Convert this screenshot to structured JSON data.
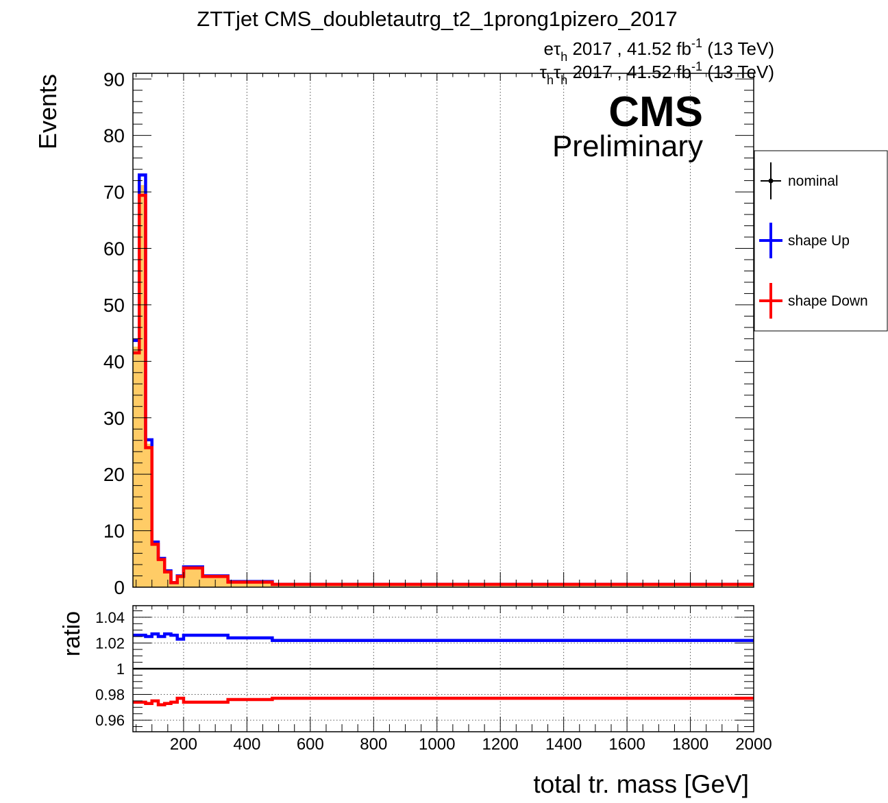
{
  "title": "ZTTjet CMS_doubletautrg_t2_1prong1pizero_2017",
  "lumi_lines": [
    {
      "prefix": "e",
      "tau_sub": "h",
      "suffix": " 2017 , 41.52 fb",
      "sup": "-1",
      "tail": " (13 TeV)"
    },
    {
      "prefix": "",
      "tau_sub": "h",
      "second_tau_sub": "h",
      "suffix": " 2017 , 41.52 fb",
      "sup": "-1",
      "tail": " (13 TeV)"
    }
  ],
  "cms_label": "CMS",
  "cms_sub": "Preliminary",
  "legend": [
    {
      "label": "nominal",
      "color": "#000000",
      "marker": "dot"
    },
    {
      "label": "shape Up",
      "color": "#0000ff",
      "marker": "cross"
    },
    {
      "label": "shape Down",
      "color": "#ff0000",
      "marker": "cross"
    }
  ],
  "chart_data": [
    {
      "type": "step",
      "ylabel": "Events",
      "xlim": [
        40,
        2000
      ],
      "ylim": [
        0,
        91
      ],
      "yticks": [
        0,
        10,
        20,
        30,
        40,
        50,
        60,
        70,
        80,
        90
      ],
      "xgrid": [
        200,
        400,
        600,
        800,
        1000,
        1200,
        1400,
        1600,
        1800
      ],
      "bin_edges": [
        40,
        60,
        80,
        100,
        120,
        140,
        160,
        180,
        200,
        220,
        240,
        260,
        280,
        300,
        320,
        340,
        360,
        380,
        400,
        420,
        440,
        460,
        480,
        500,
        2000
      ],
      "series": [
        {
          "name": "nominal",
          "color": "#ffcc66",
          "fill": true,
          "values": [
            42.6,
            71.2,
            25.4,
            7.8,
            5.0,
            2.8,
            0.8,
            2.0,
            3.5,
            3.5,
            3.5,
            1.9,
            1.9,
            1.9,
            1.9,
            1.0,
            1.0,
            1.0,
            1.0,
            1.0,
            1.0,
            1.0,
            0.5,
            0.5
          ]
        },
        {
          "name": "shape Up",
          "color": "#0000ff",
          "values": [
            43.7,
            73.0,
            26.1,
            8.0,
            5.1,
            2.9,
            0.8,
            2.0,
            3.6,
            3.6,
            3.6,
            2.0,
            2.0,
            2.0,
            2.0,
            1.0,
            1.0,
            1.0,
            1.0,
            1.0,
            1.0,
            1.0,
            0.5,
            0.5
          ]
        },
        {
          "name": "shape Down",
          "color": "#ff0000",
          "values": [
            41.5,
            69.4,
            24.7,
            7.6,
            4.9,
            2.7,
            0.8,
            1.9,
            3.4,
            3.4,
            3.4,
            1.9,
            1.9,
            1.9,
            1.9,
            0.9,
            0.9,
            0.9,
            0.9,
            0.9,
            0.9,
            0.9,
            0.5,
            0.5
          ]
        }
      ]
    },
    {
      "type": "step",
      "xlabel": "total tr. mass [GeV]",
      "ylabel": "ratio",
      "xlim": [
        40,
        2000
      ],
      "ylim": [
        0.951,
        1.049
      ],
      "yticks": [
        0.96,
        0.98,
        1,
        1.02,
        1.04
      ],
      "ytick_labels": [
        "0.96",
        "0.98",
        "1",
        "1.02",
        "1.04"
      ],
      "xticks": [
        200,
        400,
        600,
        800,
        1000,
        1200,
        1400,
        1600,
        1800,
        2000
      ],
      "reference_line": 1,
      "bin_edges": [
        40,
        60,
        80,
        100,
        120,
        140,
        160,
        180,
        200,
        220,
        240,
        260,
        280,
        300,
        320,
        340,
        360,
        380,
        400,
        420,
        440,
        460,
        480,
        500,
        2000
      ],
      "series": [
        {
          "name": "shape Up",
          "color": "#0000ff",
          "values": [
            1.026,
            1.026,
            1.025,
            1.027,
            1.025,
            1.027,
            1.026,
            1.023,
            1.026,
            1.026,
            1.026,
            1.026,
            1.026,
            1.026,
            1.026,
            1.024,
            1.024,
            1.024,
            1.024,
            1.024,
            1.024,
            1.024,
            1.022,
            1.022
          ]
        },
        {
          "name": "shape Down",
          "color": "#ff0000",
          "values": [
            0.974,
            0.974,
            0.973,
            0.975,
            0.972,
            0.973,
            0.974,
            0.977,
            0.974,
            0.974,
            0.974,
            0.974,
            0.974,
            0.974,
            0.974,
            0.976,
            0.976,
            0.976,
            0.976,
            0.976,
            0.976,
            0.976,
            0.977,
            0.977
          ]
        }
      ]
    }
  ]
}
